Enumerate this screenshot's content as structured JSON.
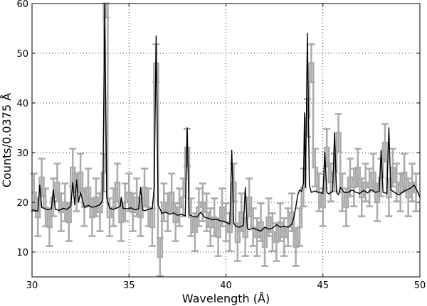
{
  "chart_data": {
    "type": "line",
    "xlabel": "Wavelength (Å)",
    "ylabel": "Counts/0.0375 Å",
    "xlim": [
      30,
      50
    ],
    "ylim": [
      5,
      60
    ],
    "x_ticks": [
      30,
      35,
      40,
      45,
      50
    ],
    "y_ticks": [
      10,
      20,
      30,
      40,
      50,
      60
    ],
    "grid": "dotted",
    "colors": {
      "data": "#aaaaaa",
      "model": "#000000"
    },
    "series": [
      {
        "kind": "data-with-errorbars",
        "x": [
          30.1,
          30.3,
          30.5,
          30.7,
          30.9,
          31.1,
          31.3,
          31.5,
          31.7,
          31.9,
          32.1,
          32.3,
          32.5,
          32.7,
          32.9,
          33.1,
          33.3,
          33.5,
          33.7,
          33.8,
          34.0,
          34.2,
          34.4,
          34.6,
          34.8,
          35.0,
          35.2,
          35.4,
          35.6,
          35.8,
          36.0,
          36.2,
          36.4,
          36.6,
          36.8,
          37.0,
          37.2,
          37.4,
          37.6,
          37.8,
          38.0,
          38.2,
          38.4,
          38.6,
          38.8,
          39.0,
          39.2,
          39.4,
          39.6,
          39.8,
          40.0,
          40.2,
          40.4,
          40.6,
          40.8,
          41.0,
          41.2,
          41.4,
          41.6,
          41.8,
          42.0,
          42.2,
          42.4,
          42.6,
          42.8,
          43.0,
          43.2,
          43.4,
          43.6,
          43.8,
          44.0,
          44.2,
          44.4,
          44.6,
          44.8,
          45.0,
          45.2,
          45.4,
          45.6,
          45.8,
          46.0,
          46.2,
          46.4,
          46.6,
          46.8,
          47.0,
          47.2,
          47.4,
          47.6,
          47.8,
          48.0,
          48.2,
          48.4,
          48.6,
          48.8,
          49.0,
          49.2,
          49.4,
          49.6,
          49.8
        ],
        "y": [
          22,
          17,
          25,
          19,
          15,
          21,
          24,
          18,
          20,
          16,
          27,
          22,
          26,
          19,
          23,
          17,
          21,
          18,
          26,
          61,
          17,
          19,
          24,
          16,
          20,
          22,
          18,
          21,
          17,
          23,
          19,
          15,
          48,
          9,
          20,
          18,
          22,
          16,
          19,
          21,
          31,
          17,
          14,
          19,
          20,
          18,
          15,
          17,
          13,
          19,
          16,
          14,
          24,
          12,
          18,
          13,
          21,
          15,
          13,
          16,
          11,
          17,
          14,
          12,
          16,
          13,
          15,
          18,
          11,
          15,
          23,
          37,
          48,
          27,
          22,
          19,
          31,
          24,
          26,
          34,
          22,
          19,
          25,
          23,
          27,
          21,
          24,
          23,
          26,
          20,
          25,
          32,
          21,
          27,
          24,
          22,
          26,
          21,
          24,
          22
        ],
        "error": 3.8
      },
      {
        "kind": "model",
        "x": [
          30,
          30.3,
          30.4,
          30.5,
          30.6,
          30.8,
          31.0,
          31.1,
          31.2,
          31.4,
          31.6,
          31.8,
          32.0,
          32.1,
          32.2,
          32.3,
          32.4,
          32.5,
          32.7,
          32.9,
          33.1,
          33.3,
          33.5,
          33.65,
          33.75,
          33.85,
          34.0,
          34.2,
          34.4,
          34.55,
          34.6,
          34.7,
          34.9,
          35.1,
          35.3,
          35.5,
          35.6,
          35.7,
          35.8,
          36.0,
          36.2,
          36.3,
          36.4,
          36.5,
          36.7,
          36.9,
          37.1,
          37.3,
          37.5,
          37.7,
          37.9,
          38.0,
          38.1,
          38.3,
          38.5,
          38.7,
          38.9,
          39.1,
          39.3,
          39.5,
          39.7,
          39.9,
          40.1,
          40.2,
          40.3,
          40.4,
          40.5,
          40.7,
          40.9,
          41.0,
          41.1,
          41.2,
          41.4,
          41.6,
          41.8,
          42.0,
          42.2,
          42.4,
          42.6,
          42.8,
          43.0,
          43.2,
          43.4,
          43.5,
          43.6,
          43.7,
          43.8,
          43.9,
          44.0,
          44.05,
          44.1,
          44.2,
          44.3,
          44.4,
          44.6,
          44.8,
          45.0,
          45.1,
          45.2,
          45.3,
          45.5,
          45.6,
          45.7,
          45.8,
          45.9,
          46.1,
          46.3,
          46.5,
          46.7,
          46.9,
          47.1,
          47.3,
          47.5,
          47.7,
          47.9,
          48.0,
          48.1,
          48.3,
          48.4,
          48.5,
          48.7,
          48.9,
          49.1,
          49.3,
          49.5,
          49.7,
          49.9,
          50.0
        ],
        "y": [
          18.5,
          18.2,
          23.5,
          19.0,
          18.8,
          18.5,
          18.7,
          22.5,
          18.6,
          18.4,
          18.8,
          18.6,
          19.2,
          24.0,
          19.5,
          24.5,
          20.0,
          22.0,
          19.0,
          19.4,
          19.0,
          19.2,
          19.5,
          20.5,
          60.0,
          21.0,
          18.8,
          18.6,
          18.9,
          19.2,
          21.0,
          18.8,
          18.7,
          18.9,
          18.5,
          18.7,
          23.0,
          18.5,
          18.3,
          18.6,
          18.8,
          23.0,
          53.5,
          19.5,
          17.8,
          18.0,
          17.6,
          17.9,
          17.4,
          17.6,
          17.3,
          35.0,
          17.5,
          17.2,
          17.0,
          18.0,
          17.0,
          16.8,
          16.5,
          16.6,
          16.3,
          16.2,
          15.8,
          15.6,
          30.5,
          15.8,
          15.2,
          15.0,
          15.4,
          23.0,
          14.8,
          14.5,
          14.8,
          14.5,
          14.2,
          15.0,
          14.6,
          14.8,
          15.5,
          15.0,
          15.2,
          15.0,
          15.6,
          17.0,
          19.0,
          21.5,
          22.5,
          22.2,
          24.0,
          38.0,
          23.0,
          54.0,
          23.5,
          22.0,
          22.3,
          22.0,
          21.8,
          30.0,
          22.0,
          21.7,
          22.2,
          34.0,
          22.0,
          21.5,
          23.0,
          22.0,
          22.0,
          22.5,
          22.0,
          21.8,
          22.4,
          21.9,
          22.6,
          22.0,
          22.2,
          30.5,
          22.0,
          21.8,
          35.0,
          22.5,
          22.0,
          21.5,
          22.0,
          22.5,
          22.8,
          23.5,
          22.0,
          21.0
        ]
      }
    ]
  }
}
